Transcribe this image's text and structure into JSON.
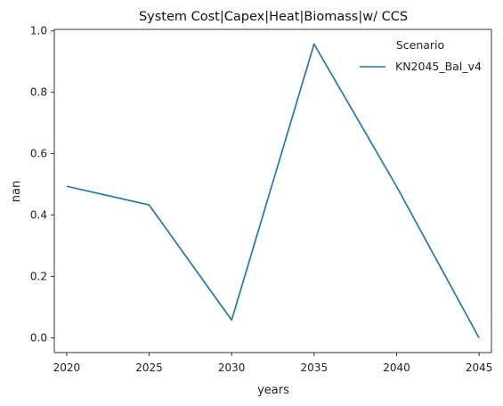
{
  "chart_data": {
    "type": "line",
    "title": "System Cost|Capex|Heat|Biomass|w/ CCS",
    "xlabel": "years",
    "ylabel": "nan",
    "x": [
      2020,
      2025,
      2030,
      2035,
      2040,
      2045
    ],
    "xticks": [
      "2020",
      "2025",
      "2030",
      "2035",
      "2040",
      "2045"
    ],
    "yticks": [
      "0.0",
      "0.2",
      "0.4",
      "0.6",
      "0.8",
      "1.0"
    ],
    "xlim": [
      2019.25,
      2045.75
    ],
    "ylim": [
      -0.048,
      1.005
    ],
    "grid": false,
    "legend": {
      "title": "Scenario",
      "placement": "top-right"
    },
    "series": [
      {
        "name": "KN2045_Bal_v4",
        "color": "#1f77b4",
        "values": [
          0.494,
          0.433,
          0.058,
          0.957,
          0.493,
          0.0
        ]
      }
    ]
  }
}
